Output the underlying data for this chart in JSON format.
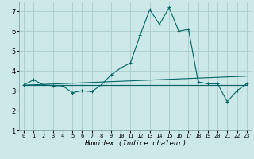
{
  "xlabel": "Humidex (Indice chaleur)",
  "bg_color": "#cce8e8",
  "grid_color": "#aacccc",
  "line_color": "#006666",
  "xlim": [
    -0.5,
    23.5
  ],
  "ylim": [
    1,
    7.5
  ],
  "xticks": [
    0,
    1,
    2,
    3,
    4,
    5,
    6,
    7,
    8,
    9,
    10,
    11,
    12,
    13,
    14,
    15,
    16,
    17,
    18,
    19,
    20,
    21,
    22,
    23
  ],
  "yticks": [
    1,
    2,
    3,
    4,
    5,
    6,
    7
  ],
  "x": [
    0,
    1,
    2,
    3,
    4,
    5,
    6,
    7,
    8,
    9,
    10,
    11,
    12,
    13,
    14,
    15,
    16,
    17,
    18,
    19,
    20,
    21,
    22,
    23
  ],
  "y_main": [
    3.3,
    3.55,
    3.3,
    3.25,
    3.25,
    2.9,
    3.0,
    2.95,
    3.3,
    3.8,
    4.15,
    4.4,
    5.8,
    7.1,
    6.35,
    7.2,
    6.0,
    6.1,
    3.45,
    3.35,
    3.35,
    2.45,
    3.0,
    3.35
  ],
  "y_flat1": [
    3.3,
    3.3,
    3.3,
    3.3,
    3.3,
    3.3,
    3.3,
    3.3,
    3.3,
    3.3,
    3.3,
    3.3,
    3.3,
    3.3,
    3.3,
    3.3,
    3.3,
    3.3,
    3.3,
    3.3,
    3.3,
    3.3,
    3.3,
    3.3
  ],
  "y_flat2": [
    3.3,
    3.3,
    3.3,
    3.3,
    3.3,
    3.3,
    3.3,
    3.3,
    3.3,
    3.3,
    3.3,
    3.3,
    3.3,
    3.3,
    3.3,
    3.3,
    3.3,
    3.3,
    3.3,
    3.3,
    3.3,
    3.3,
    3.3,
    3.3
  ],
  "y_trend": [
    3.28,
    3.3,
    3.32,
    3.34,
    3.36,
    3.38,
    3.4,
    3.42,
    3.44,
    3.46,
    3.48,
    3.5,
    3.52,
    3.54,
    3.56,
    3.58,
    3.6,
    3.62,
    3.64,
    3.66,
    3.68,
    3.7,
    3.72,
    3.74
  ],
  "xlabel_fontsize": 6.5,
  "tick_fontsize_x": 5.0,
  "tick_fontsize_y": 6.0
}
